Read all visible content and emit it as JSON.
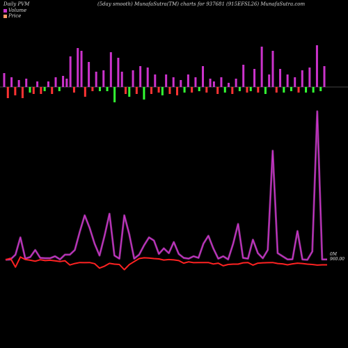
{
  "header": {
    "left": "Daily PVM",
    "center": "(5day smooth) MunafaSutra(TM) charts for 937681",
    "right": "(915EFSL26) MunafaSutra.com"
  },
  "legend": {
    "volume_label": "Volume",
    "price_label": "Price",
    "volume_color": "#cc33cc",
    "price_color": "#ff9966"
  },
  "axis_labels": {
    "volume_zero": "0M",
    "price_level": "960.00"
  },
  "chart_data": {
    "type": "line",
    "x": [
      1,
      2,
      3,
      4,
      5,
      6,
      7,
      8,
      9,
      10,
      11,
      12,
      13,
      14,
      15,
      16,
      17,
      18,
      19,
      20,
      21,
      22,
      23,
      24,
      25,
      26,
      27,
      28,
      29,
      30,
      31,
      32,
      33,
      34,
      35,
      36,
      37,
      38,
      39,
      40,
      41,
      42,
      43,
      44,
      45,
      46,
      47,
      48,
      49,
      50,
      51,
      52,
      53,
      54,
      55,
      56,
      57,
      58,
      59,
      60,
      61,
      62,
      63,
      64,
      65,
      66
    ],
    "series": [
      {
        "name": "Volume",
        "color": "#cc33cc",
        "values": [
          1.5,
          2.0,
          8.0,
          30.0,
          3.0,
          5.0,
          14.0,
          4.0,
          3.5,
          3.5,
          6.0,
          2.0,
          8.0,
          8.0,
          14.0,
          37.0,
          58.0,
          42.0,
          22.0,
          7.0,
          32.0,
          60.0,
          7.0,
          3.0,
          58.0,
          34.0,
          3.0,
          8.0,
          20.0,
          30.0,
          26.0,
          9.0,
          16.0,
          10.0,
          24.0,
          9.0,
          4.0,
          3.0,
          6.0,
          4.0,
          22.0,
          32.0,
          16.0,
          3.0,
          6.0,
          2.0,
          22.0,
          47.0,
          4.0,
          3.0,
          27.0,
          10.0,
          3.5,
          14.0,
          140.0,
          10.0,
          6.0,
          2.0,
          2.2,
          38.0,
          2.0,
          1.5,
          12.0,
          190.0,
          2.0,
          2.0
        ]
      },
      {
        "name": "Price",
        "color": "#ff2222",
        "values": [
          960.3,
          961.2,
          955.8,
          962.0,
          960.4,
          960.0,
          959.4,
          960.3,
          959.8,
          960.0,
          959.6,
          959.2,
          959.7,
          957.1,
          958.0,
          958.6,
          958.5,
          958.6,
          957.9,
          955.2,
          956.4,
          958.1,
          957.6,
          957.4,
          954.2,
          957.3,
          959.2,
          961.0,
          961.5,
          961.3,
          961.0,
          960.8,
          960.1,
          960.4,
          960.2,
          959.8,
          958.2,
          959.0,
          958.5,
          958.6,
          958.6,
          958.6,
          957.7,
          958.2,
          956.6,
          957.4,
          957.6,
          957.6,
          958.4,
          958.6,
          957.0,
          958.2,
          958.4,
          958.5,
          958.6,
          958.0,
          957.8,
          957.2,
          957.8,
          958.2,
          958.0,
          957.6,
          957.4,
          957.0,
          957.2,
          957.2
        ]
      }
    ],
    "volume_bars": {
      "color_up": "#cc33cc",
      "color_down_red": "#ff3333",
      "color_down_green": "#33ff33",
      "values": [
        10,
        -8,
        7,
        -6,
        5,
        -8,
        6,
        -4,
        -5,
        4,
        -5,
        -3,
        4,
        -5,
        7,
        -3,
        8,
        6,
        22,
        -4,
        28,
        26,
        -7,
        18,
        -3,
        11,
        -3,
        12,
        -3,
        25,
        -11,
        21,
        11,
        -5,
        -7,
        12,
        -5,
        15,
        -9,
        14,
        -5,
        9,
        -4,
        -6,
        9,
        -5,
        7,
        -6,
        5,
        -4,
        9,
        -4,
        7,
        -3,
        15,
        -4,
        6,
        4,
        -5,
        7,
        -4,
        3,
        -5,
        6,
        -3,
        16,
        -4,
        -3,
        13,
        -4,
        29,
        -5,
        9,
        26,
        -4,
        13,
        -4,
        9,
        -3,
        7,
        -4,
        12,
        -4,
        14,
        -4,
        30,
        -3,
        15
      ],
      "kinds": [
        "u",
        "r",
        "u",
        "r",
        "u",
        "r",
        "u",
        "g",
        "r",
        "u",
        "r",
        "g",
        "u",
        "r",
        "u",
        "g",
        "u",
        "u",
        "u",
        "r",
        "u",
        "u",
        "r",
        "u",
        "r",
        "u",
        "g",
        "u",
        "g",
        "u",
        "g",
        "u",
        "u",
        "r",
        "g",
        "u",
        "r",
        "u",
        "g",
        "u",
        "r",
        "u",
        "r",
        "g",
        "u",
        "r",
        "u",
        "r",
        "u",
        "g",
        "u",
        "r",
        "u",
        "g",
        "u",
        "r",
        "u",
        "u",
        "r",
        "u",
        "g",
        "u",
        "r",
        "u",
        "g",
        "u",
        "r",
        "g",
        "u",
        "r",
        "u",
        "g",
        "u",
        "u",
        "r",
        "u",
        "g",
        "u",
        "g",
        "u",
        "r",
        "u",
        "g",
        "u",
        "g",
        "u",
        "g",
        "u"
      ]
    }
  }
}
